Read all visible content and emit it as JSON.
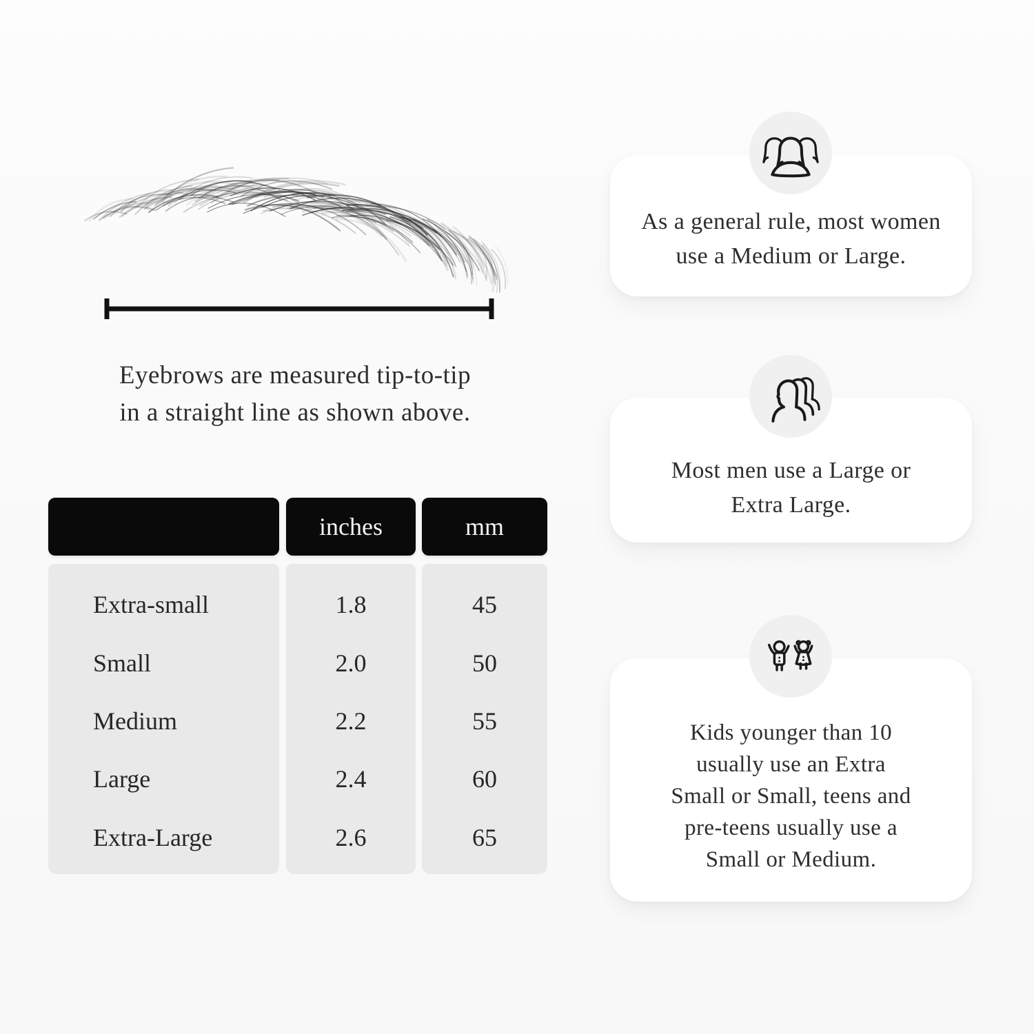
{
  "page": {
    "background": "#fafafa",
    "text_color": "#2b2b2b",
    "card_background": "#ffffff",
    "icon_circle_background": "#f0f0f0"
  },
  "measurement_section": {
    "illustration": "eyebrow-sketch",
    "ruler": "tip-to-tip-measurement-line",
    "caption_lines": [
      "Eyebrows are measured tip-to-tip",
      "in a straight line as shown above."
    ]
  },
  "size_table": {
    "header_bg": "#0a0a0a",
    "header_text_color": "#f5f5f5",
    "body_bg": "#e9e9e9",
    "columns": [
      "",
      "inches",
      "mm"
    ],
    "rows": [
      {
        "size": "Extra-small",
        "inches": "1.8",
        "mm": "45"
      },
      {
        "size": "Small",
        "inches": "2.0",
        "mm": "50"
      },
      {
        "size": "Medium",
        "inches": "2.2",
        "mm": "55"
      },
      {
        "size": "Large",
        "inches": "2.4",
        "mm": "60"
      },
      {
        "size": "Extra-Large",
        "inches": "2.6",
        "mm": "65"
      }
    ]
  },
  "guide_cards": [
    {
      "icon": "women-group",
      "lines": [
        "As a general rule, most women",
        "use a Medium or Large."
      ]
    },
    {
      "icon": "men-group",
      "lines": [
        "Most men use a Large or",
        "Extra Large."
      ]
    },
    {
      "icon": "kids",
      "lines": [
        "Kids younger than 10",
        "usually use an Extra",
        "Small or Small, teens and",
        "pre-teens usually use a",
        "Small or Medium."
      ]
    }
  ]
}
